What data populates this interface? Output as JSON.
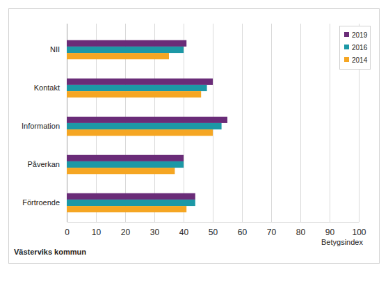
{
  "chart_data": {
    "type": "bar",
    "orientation": "horizontal",
    "categories": [
      "NII",
      "Kontakt",
      "Information",
      "Påverkan",
      "Förtroende"
    ],
    "series": [
      {
        "name": "2019",
        "color": "#6a2c78",
        "values": [
          41,
          50,
          55,
          40,
          44
        ]
      },
      {
        "name": "2016",
        "color": "#1c98a6",
        "values": [
          40,
          48,
          53,
          40,
          44
        ]
      },
      {
        "name": "2014",
        "color": "#f5a623",
        "values": [
          35,
          46,
          50,
          37,
          41
        ]
      }
    ],
    "xlim": [
      0,
      100
    ],
    "xticks": [
      0,
      10,
      20,
      30,
      40,
      50,
      60,
      70,
      80,
      90,
      100
    ],
    "xlabel": "Betygsindex",
    "annotation": "Västerviks kommun",
    "grid": true,
    "legend": "upper right"
  }
}
